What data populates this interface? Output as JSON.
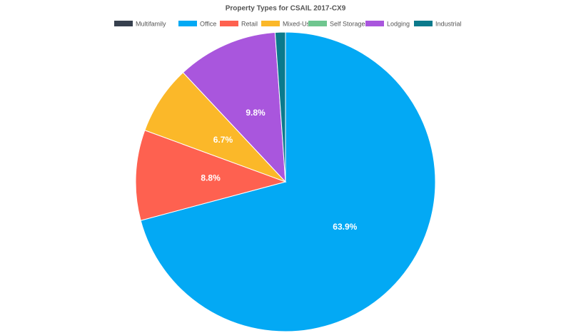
{
  "chart_data": {
    "type": "pie",
    "title": "Property Types for CSAIL 2017-CX9",
    "categories": [
      "Multifamily",
      "Office",
      "Retail",
      "Mixed-Use",
      "Self Storage",
      "Lodging",
      "Industrial"
    ],
    "values": [
      0,
      63.9,
      8.8,
      6.7,
      0,
      9.8,
      1.0
    ],
    "value_labels": [
      null,
      "63.9%",
      "8.8%",
      "6.7%",
      null,
      "9.8%",
      null
    ],
    "colors": [
      "#36404e",
      "#03a9f4",
      "#fe6150",
      "#fbb829",
      "#6fc68f",
      "#a956dd",
      "#0b7a8c"
    ],
    "legend": "top"
  }
}
